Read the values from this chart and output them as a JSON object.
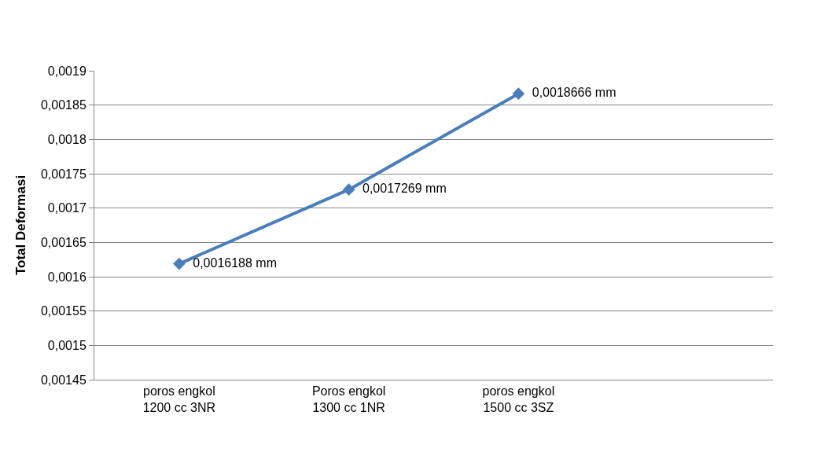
{
  "chart_data": {
    "type": "line",
    "ylabel": "Total Deformasi",
    "categories": [
      "poros engkol\n1200 cc 3NR",
      "Poros engkol\n1300 cc 1NR",
      "poros engkol\n1500 cc 3SZ",
      null
    ],
    "series": [
      {
        "color": "#4a7ebb",
        "values": [
          0.0016188,
          0.0017269,
          0.0018666,
          null
        ],
        "value_labels": [
          "0,0016188 mm",
          "0,0017269 mm",
          "0,0018666 mm",
          null
        ]
      }
    ],
    "ylim": [
      0.00145,
      0.0019
    ],
    "yticks": [
      {
        "value": 0.00145,
        "label": "0,00145"
      },
      {
        "value": 0.0015,
        "label": "0,0015"
      },
      {
        "value": 0.00155,
        "label": "0,00155"
      },
      {
        "value": 0.0016,
        "label": "0,0016"
      },
      {
        "value": 0.00165,
        "label": "0,00165"
      },
      {
        "value": 0.0017,
        "label": "0,0017"
      },
      {
        "value": 0.00175,
        "label": "0,00175"
      },
      {
        "value": 0.0018,
        "label": "0,0018"
      },
      {
        "value": 0.00185,
        "label": "0,00185"
      },
      {
        "value": 0.0019,
        "label": "0,0019"
      }
    ],
    "grid": "y",
    "legend": false,
    "marker": "diamond",
    "line_style": "solid"
  }
}
